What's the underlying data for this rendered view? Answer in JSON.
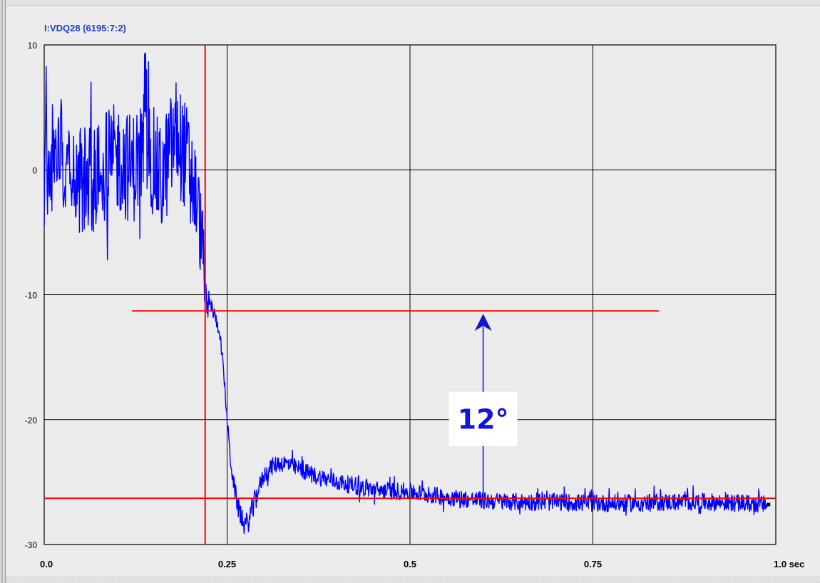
{
  "chart_data": {
    "type": "line",
    "title": "I:VDQ28 (6195:7:2)",
    "xlabel": "",
    "ylabel": "",
    "x_unit": "sec",
    "xlim": [
      0,
      1.0
    ],
    "ylim": [
      -30,
      10
    ],
    "grid": true,
    "x_ticks": [
      0,
      0.25,
      0.5,
      0.75,
      1.0
    ],
    "x_tick_labels": [
      "0.0",
      "0.25",
      "0.5",
      "0.75",
      "1.0 sec"
    ],
    "y_ticks": [
      10,
      0,
      -10,
      -20,
      -30
    ],
    "y_tick_labels": [
      "10",
      "0",
      "-10",
      "-20",
      "-30"
    ],
    "series": [
      {
        "name": "I:VDQ28 (6195:7:2)",
        "color": "#0000ff",
        "x": [
          0.0,
          0.02,
          0.04,
          0.06,
          0.08,
          0.1,
          0.12,
          0.14,
          0.16,
          0.18,
          0.2,
          0.21,
          0.218,
          0.222,
          0.226,
          0.232,
          0.24,
          0.245,
          0.25,
          0.255,
          0.26,
          0.265,
          0.27,
          0.275,
          0.28,
          0.29,
          0.3,
          0.31,
          0.32,
          0.33,
          0.35,
          0.37,
          0.4,
          0.45,
          0.5,
          0.55,
          0.6,
          0.65,
          0.7,
          0.75,
          0.8,
          0.85,
          0.9,
          0.95,
          0.99
        ],
        "y": [
          0,
          2,
          0,
          -1,
          0,
          1,
          0,
          2,
          -1,
          3,
          0,
          -3,
          -7,
          -11.5,
          -10.5,
          -11.5,
          -13,
          -16,
          -20,
          -23.5,
          -25.5,
          -27,
          -28,
          -28.5,
          -28,
          -26,
          -24.5,
          -23.8,
          -23.5,
          -23.5,
          -24,
          -24.5,
          -25,
          -25.6,
          -25.8,
          -26.2,
          -26.5,
          -26.6,
          -26.6,
          -26.7,
          -26.7,
          -26.6,
          -26.6,
          -26.7,
          -26.8
        ],
        "noise_amplitude": [
          4.5,
          4.5,
          4.5,
          4.5,
          4.5,
          4.5,
          4.5,
          4.5,
          4.5,
          4.5,
          4.5,
          4.0,
          3.0,
          1.2,
          0.6,
          0.6,
          0.5,
          0.5,
          0.5,
          0.6,
          0.7,
          0.8,
          0.9,
          0.9,
          0.9,
          0.8,
          0.7,
          0.7,
          0.7,
          0.7,
          0.7,
          0.7,
          0.7,
          0.7,
          0.7,
          0.7,
          0.7,
          0.7,
          0.7,
          0.7,
          0.7,
          0.7,
          0.7,
          0.7,
          0.7
        ]
      }
    ],
    "reference_lines": {
      "color": "#ff0000",
      "vertical_x": 0.22,
      "upper_y": -11.3,
      "upper_x_range": [
        0.12,
        0.84
      ],
      "lower_y": -26.3
    },
    "annotation": {
      "text": "12°",
      "arrow_x": 0.6,
      "arrow_from_y": -26.3,
      "arrow_to_y": -11.3,
      "color": "#1515d8"
    }
  }
}
